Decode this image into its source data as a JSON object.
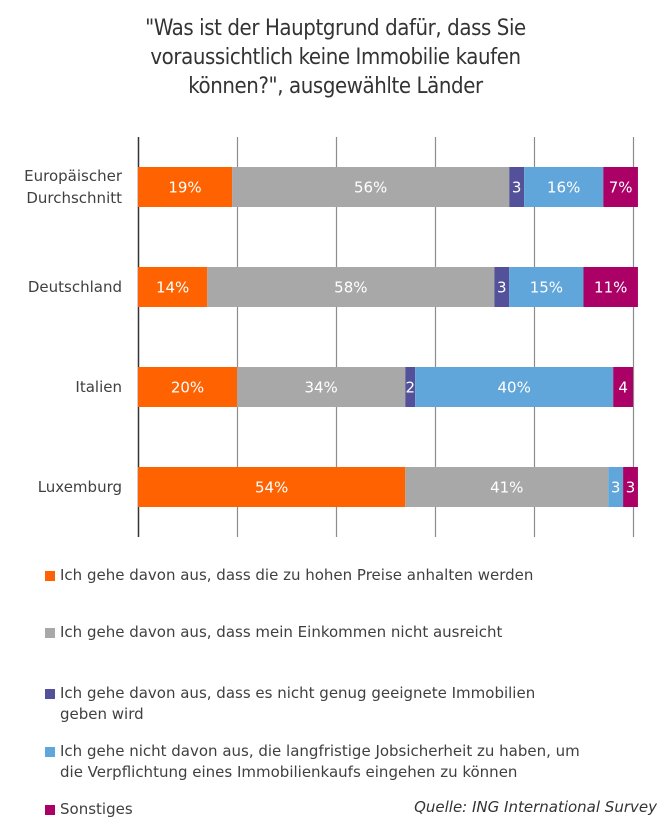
{
  "chart_data": {
    "type": "bar",
    "orientation": "horizontal",
    "stacked": true,
    "title_lines": [
      "\"Was ist der Hauptgrund dafür, dass Sie",
      "voraussichtlich keine Immobilie kaufen",
      "können?\", ausgewählte Länder"
    ],
    "categories": [
      [
        "Europäischer",
        "Durchschnitt"
      ],
      [
        "Deutschland"
      ],
      [
        "Italien"
      ],
      [
        "Luxemburg"
      ]
    ],
    "series": [
      {
        "name": "Ich gehe davon aus, dass die zu hohen Preise anhalten werden",
        "legend_lines": [
          "Ich gehe davon aus, dass die zu hohen Preise anhalten werden"
        ],
        "color": "#FF6200",
        "values": [
          19,
          14,
          20,
          54
        ],
        "labels": [
          "19%",
          "14%",
          "20%",
          "54%"
        ]
      },
      {
        "name": "Ich gehe davon aus, dass mein Einkommen nicht ausreicht",
        "legend_lines": [
          "Ich gehe davon aus, dass mein Einkommen nicht ausreicht"
        ],
        "color": "#A8A8A8",
        "values": [
          56,
          58,
          34,
          41
        ],
        "labels": [
          "56%",
          "58%",
          "34%",
          "41%"
        ]
      },
      {
        "name": "Ich gehe davon aus, dass es nicht genug geeignete Immobilien geben wird",
        "legend_lines": [
          "Ich gehe davon aus, dass es nicht genug geeignete Immobilien",
          "geben wird"
        ],
        "color": "#525199",
        "values": [
          3,
          3,
          2,
          0
        ],
        "labels": [
          "3",
          "3",
          "2",
          ""
        ]
      },
      {
        "name": "Ich gehe nicht davon aus, die langfristige Jobsicherheit zu haben, um die Verpflichtung eines Immobilienkaufs eingehen zu können",
        "legend_lines": [
          "Ich gehe nicht davon aus, die langfristige Jobsicherheit zu haben, um",
          "die Verpflichtung eines Immobilienkaufs eingehen zu können"
        ],
        "color": "#60A6DA",
        "values": [
          16,
          15,
          40,
          3
        ],
        "labels": [
          "16%",
          "15%",
          "40%",
          "3"
        ]
      },
      {
        "name": "Sonstiges",
        "legend_lines": [
          "Sonstiges"
        ],
        "color": "#AB0066",
        "values": [
          7,
          11,
          4,
          3
        ],
        "labels": [
          "7%",
          "11%",
          "4",
          "3"
        ]
      }
    ],
    "xlim": [
      0,
      100
    ],
    "gridlines_at": [
      0,
      20,
      40,
      60,
      80,
      100
    ],
    "grid": true,
    "xlabel": "",
    "ylabel": "",
    "legend_position": "bottom",
    "source": "Quelle: ING International Survey"
  }
}
